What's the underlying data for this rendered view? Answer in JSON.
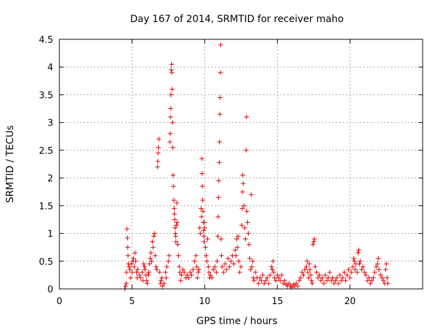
{
  "chart_data": {
    "type": "scatter",
    "title": "Day 167 of 2014, SRMTID for receiver maho",
    "xlabel": "GPS time / hours",
    "ylabel": "SRMTID / TECUs",
    "xlim": [
      0,
      25
    ],
    "ylim": [
      0,
      4.5
    ],
    "xticks": [
      0,
      5,
      10,
      15,
      20
    ],
    "yticks": [
      0,
      0.5,
      1,
      1.5,
      2,
      2.5,
      3,
      3.5,
      4,
      4.5
    ],
    "grid": true,
    "marker": "+",
    "color": "#e00000",
    "series": [
      {
        "name": "SRMTID",
        "points": [
          [
            4.5,
            0.0
          ],
          [
            4.55,
            0.05
          ],
          [
            4.6,
            0.1
          ],
          [
            4.62,
            0.3
          ],
          [
            4.65,
            1.08
          ],
          [
            4.68,
            0.92
          ],
          [
            4.7,
            0.75
          ],
          [
            4.72,
            0.6
          ],
          [
            4.75,
            0.45
          ],
          [
            4.8,
            0.4
          ],
          [
            4.85,
            0.35
          ],
          [
            4.9,
            0.2
          ],
          [
            4.95,
            0.45
          ],
          [
            5.0,
            0.3
          ],
          [
            5.05,
            0.5
          ],
          [
            5.1,
            0.55
          ],
          [
            5.15,
            0.4
          ],
          [
            5.2,
            0.65
          ],
          [
            5.25,
            0.5
          ],
          [
            5.3,
            0.3
          ],
          [
            5.35,
            0.2
          ],
          [
            5.4,
            0.35
          ],
          [
            5.5,
            0.25
          ],
          [
            5.6,
            0.2
          ],
          [
            5.7,
            0.3
          ],
          [
            5.75,
            0.15
          ],
          [
            5.8,
            0.45
          ],
          [
            5.85,
            0.4
          ],
          [
            5.9,
            0.35
          ],
          [
            5.95,
            0.25
          ],
          [
            6.0,
            0.15
          ],
          [
            6.05,
            0.1
          ],
          [
            6.1,
            0.25
          ],
          [
            6.15,
            0.3
          ],
          [
            6.2,
            0.45
          ],
          [
            6.25,
            0.55
          ],
          [
            6.3,
            0.65
          ],
          [
            6.35,
            0.5
          ],
          [
            6.4,
            0.85
          ],
          [
            6.45,
            0.75
          ],
          [
            6.5,
            0.95
          ],
          [
            6.55,
            1.0
          ],
          [
            6.6,
            0.6
          ],
          [
            6.65,
            0.4
          ],
          [
            6.7,
            0.35
          ],
          [
            6.75,
            2.2
          ],
          [
            6.78,
            2.3
          ],
          [
            6.8,
            2.45
          ],
          [
            6.82,
            2.55
          ],
          [
            6.85,
            2.7
          ],
          [
            6.9,
            0.3
          ],
          [
            6.95,
            0.1
          ],
          [
            7.0,
            0.15
          ],
          [
            7.05,
            0.2
          ],
          [
            7.1,
            0.05
          ],
          [
            7.2,
            0.1
          ],
          [
            7.3,
            0.3
          ],
          [
            7.35,
            0.2
          ],
          [
            7.4,
            0.4
          ],
          [
            7.5,
            0.5
          ],
          [
            7.55,
            0.6
          ],
          [
            7.6,
            2.65
          ],
          [
            7.62,
            2.8
          ],
          [
            7.65,
            3.1
          ],
          [
            7.66,
            3.25
          ],
          [
            7.68,
            3.5
          ],
          [
            7.7,
            3.95
          ],
          [
            7.72,
            4.05
          ],
          [
            7.74,
            3.9
          ],
          [
            7.76,
            3.6
          ],
          [
            7.78,
            3.0
          ],
          [
            7.8,
            2.55
          ],
          [
            7.82,
            2.05
          ],
          [
            7.85,
            1.85
          ],
          [
            7.88,
            1.6
          ],
          [
            7.9,
            1.45
          ],
          [
            7.92,
            1.35
          ],
          [
            7.94,
            1.25
          ],
          [
            7.96,
            1.1
          ],
          [
            7.98,
            1.0
          ],
          [
            8.0,
            0.95
          ],
          [
            8.02,
            0.85
          ],
          [
            8.05,
            1.15
          ],
          [
            8.08,
            1.55
          ],
          [
            8.1,
            1.2
          ],
          [
            8.15,
            0.8
          ],
          [
            8.2,
            0.6
          ],
          [
            8.25,
            0.4
          ],
          [
            8.3,
            0.3
          ],
          [
            8.35,
            0.15
          ],
          [
            8.4,
            0.25
          ],
          [
            8.5,
            0.35
          ],
          [
            8.6,
            0.3
          ],
          [
            8.7,
            0.2
          ],
          [
            8.8,
            0.25
          ],
          [
            8.9,
            0.2
          ],
          [
            9.0,
            0.3
          ],
          [
            9.1,
            0.25
          ],
          [
            9.2,
            0.35
          ],
          [
            9.3,
            0.5
          ],
          [
            9.4,
            0.6
          ],
          [
            9.45,
            0.4
          ],
          [
            9.5,
            0.2
          ],
          [
            9.55,
            0.3
          ],
          [
            9.6,
            0.35
          ],
          [
            9.65,
            1.1
          ],
          [
            9.7,
            1.0
          ],
          [
            9.75,
            1.45
          ],
          [
            9.78,
            1.3
          ],
          [
            9.8,
            2.35
          ],
          [
            9.82,
            2.08
          ],
          [
            9.84,
            1.85
          ],
          [
            9.86,
            1.6
          ],
          [
            9.88,
            1.4
          ],
          [
            9.9,
            1.2
          ],
          [
            9.92,
            1.05
          ],
          [
            9.94,
            0.95
          ],
          [
            9.96,
            0.85
          ],
          [
            9.98,
            1.2
          ],
          [
            10.0,
            1.1
          ],
          [
            10.05,
            0.75
          ],
          [
            10.1,
            0.6
          ],
          [
            10.15,
            0.5
          ],
          [
            10.2,
            0.9
          ],
          [
            10.25,
            0.4
          ],
          [
            10.3,
            0.3
          ],
          [
            10.35,
            0.2
          ],
          [
            10.4,
            0.25
          ],
          [
            10.5,
            0.2
          ],
          [
            10.6,
            0.35
          ],
          [
            10.7,
            0.4
          ],
          [
            10.8,
            0.3
          ],
          [
            10.85,
            0.5
          ],
          [
            10.9,
            0.95
          ],
          [
            10.92,
            1.3
          ],
          [
            10.95,
            1.65
          ],
          [
            10.97,
            1.95
          ],
          [
            11.0,
            2.28
          ],
          [
            11.02,
            2.65
          ],
          [
            11.04,
            3.15
          ],
          [
            11.06,
            3.45
          ],
          [
            11.08,
            3.9
          ],
          [
            11.1,
            4.4
          ],
          [
            11.12,
            0.9
          ],
          [
            11.15,
            0.6
          ],
          [
            11.2,
            0.4
          ],
          [
            11.3,
            0.3
          ],
          [
            11.4,
            0.45
          ],
          [
            11.5,
            0.35
          ],
          [
            11.6,
            0.55
          ],
          [
            11.7,
            0.4
          ],
          [
            11.8,
            0.5
          ],
          [
            11.9,
            0.6
          ],
          [
            12.0,
            0.45
          ],
          [
            12.1,
            0.7
          ],
          [
            12.15,
            0.6
          ],
          [
            12.2,
            0.9
          ],
          [
            12.25,
            0.75
          ],
          [
            12.3,
            0.95
          ],
          [
            12.35,
            0.5
          ],
          [
            12.4,
            0.3
          ],
          [
            12.5,
            0.4
          ],
          [
            12.55,
            1.15
          ],
          [
            12.58,
            1.45
          ],
          [
            12.6,
            1.75
          ],
          [
            12.62,
            2.05
          ],
          [
            12.65,
            1.9
          ],
          [
            12.7,
            1.5
          ],
          [
            12.75,
            1.1
          ],
          [
            12.8,
            0.9
          ],
          [
            12.85,
            2.5
          ],
          [
            12.88,
            3.1
          ],
          [
            12.9,
            1.4
          ],
          [
            12.95,
            1.2
          ],
          [
            13.0,
            1.0
          ],
          [
            13.05,
            0.8
          ],
          [
            13.1,
            0.55
          ],
          [
            13.15,
            0.35
          ],
          [
            13.2,
            1.7
          ],
          [
            13.25,
            0.4
          ],
          [
            13.3,
            0.5
          ],
          [
            13.35,
            0.2
          ],
          [
            13.4,
            0.15
          ],
          [
            13.5,
            0.3
          ],
          [
            13.6,
            0.2
          ],
          [
            13.7,
            0.1
          ],
          [
            13.8,
            0.2
          ],
          [
            13.9,
            0.15
          ],
          [
            14.0,
            0.25
          ],
          [
            14.1,
            0.1
          ],
          [
            14.2,
            0.15
          ],
          [
            14.3,
            0.2
          ],
          [
            14.4,
            0.1
          ],
          [
            14.5,
            0.25
          ],
          [
            14.6,
            0.4
          ],
          [
            14.65,
            0.35
          ],
          [
            14.7,
            0.5
          ],
          [
            14.75,
            0.3
          ],
          [
            14.8,
            0.2
          ],
          [
            14.9,
            0.15
          ],
          [
            15.0,
            0.25
          ],
          [
            15.1,
            0.2
          ],
          [
            15.2,
            0.15
          ],
          [
            15.3,
            0.25
          ],
          [
            15.4,
            0.1
          ],
          [
            15.5,
            0.15
          ],
          [
            15.6,
            0.08
          ],
          [
            15.7,
            0.05
          ],
          [
            15.8,
            0.1
          ],
          [
            15.9,
            0.05
          ],
          [
            16.0,
            0.03
          ],
          [
            16.1,
            0.08
          ],
          [
            16.2,
            0.05
          ],
          [
            16.3,
            0.1
          ],
          [
            16.4,
            0.05
          ],
          [
            16.5,
            0.15
          ],
          [
            16.6,
            0.2
          ],
          [
            16.7,
            0.3
          ],
          [
            16.8,
            0.25
          ],
          [
            16.9,
            0.35
          ],
          [
            17.0,
            0.4
          ],
          [
            17.05,
            0.5
          ],
          [
            17.1,
            0.3
          ],
          [
            17.15,
            0.2
          ],
          [
            17.2,
            0.45
          ],
          [
            17.25,
            0.35
          ],
          [
            17.3,
            0.25
          ],
          [
            17.35,
            0.15
          ],
          [
            17.4,
            0.1
          ],
          [
            17.45,
            0.8
          ],
          [
            17.5,
            0.85
          ],
          [
            17.55,
            0.9
          ],
          [
            17.6,
            0.4
          ],
          [
            17.7,
            0.3
          ],
          [
            17.8,
            0.2
          ],
          [
            17.9,
            0.25
          ],
          [
            18.0,
            0.15
          ],
          [
            18.1,
            0.2
          ],
          [
            18.2,
            0.1
          ],
          [
            18.3,
            0.25
          ],
          [
            18.4,
            0.15
          ],
          [
            18.5,
            0.2
          ],
          [
            18.6,
            0.3
          ],
          [
            18.7,
            0.15
          ],
          [
            18.8,
            0.2
          ],
          [
            18.9,
            0.1
          ],
          [
            19.0,
            0.15
          ],
          [
            19.1,
            0.2
          ],
          [
            19.2,
            0.1
          ],
          [
            19.3,
            0.25
          ],
          [
            19.4,
            0.15
          ],
          [
            19.5,
            0.2
          ],
          [
            19.6,
            0.3
          ],
          [
            19.7,
            0.15
          ],
          [
            19.8,
            0.25
          ],
          [
            19.9,
            0.35
          ],
          [
            20.0,
            0.2
          ],
          [
            20.1,
            0.3
          ],
          [
            20.2,
            0.4
          ],
          [
            20.25,
            0.55
          ],
          [
            20.3,
            0.5
          ],
          [
            20.35,
            0.35
          ],
          [
            20.4,
            0.45
          ],
          [
            20.5,
            0.3
          ],
          [
            20.55,
            0.65
          ],
          [
            20.6,
            0.7
          ],
          [
            20.65,
            0.45
          ],
          [
            20.7,
            0.5
          ],
          [
            20.8,
            0.35
          ],
          [
            20.9,
            0.4
          ],
          [
            21.0,
            0.3
          ],
          [
            21.1,
            0.25
          ],
          [
            21.2,
            0.15
          ],
          [
            21.3,
            0.2
          ],
          [
            21.4,
            0.1
          ],
          [
            21.5,
            0.15
          ],
          [
            21.6,
            0.2
          ],
          [
            21.7,
            0.3
          ],
          [
            21.8,
            0.4
          ],
          [
            21.9,
            0.45
          ],
          [
            21.95,
            0.55
          ],
          [
            22.0,
            0.35
          ],
          [
            22.1,
            0.25
          ],
          [
            22.2,
            0.2
          ],
          [
            22.3,
            0.15
          ],
          [
            22.4,
            0.1
          ],
          [
            22.45,
            0.35
          ],
          [
            22.5,
            0.45
          ],
          [
            22.55,
            0.2
          ],
          [
            22.6,
            0.1
          ]
        ]
      }
    ]
  }
}
